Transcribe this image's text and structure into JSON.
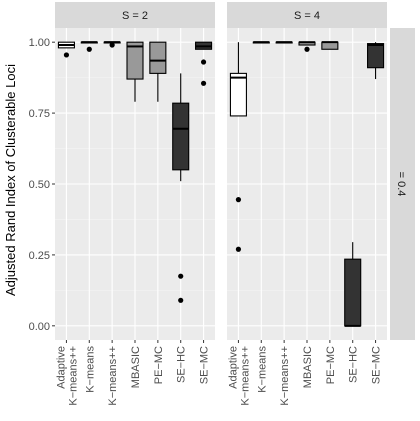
{
  "chart_data": {
    "type": "boxplot",
    "title": "",
    "ylabel": "Adjusted Rand Index of Clusterable Loci",
    "xlabel": "",
    "ylim": [
      -0.05,
      1.05
    ],
    "yticks": [
      0.0,
      0.25,
      0.5,
      0.75,
      1.0
    ],
    "ytick_labels": [
      "0.00",
      "0.25",
      "0.50",
      "0.75",
      "1.00"
    ],
    "categories": [
      "Adaptive K−means++",
      "K−means",
      "K−means++",
      "MBASIC",
      "PE−MC",
      "SE−HC",
      "SE−MC"
    ],
    "row_strip": "= 0.4",
    "panels": [
      {
        "strip": "S = 2",
        "boxes": [
          {
            "category": "Adaptive K−means++",
            "fill": "#ffffff",
            "whisker_low": 0.98,
            "q1": 0.98,
            "median": 0.99,
            "q3": 1.0,
            "whisker_high": 1.0,
            "outliers": [
              0.955
            ]
          },
          {
            "category": "K−means",
            "fill": "#ffffff",
            "whisker_low": 1.0,
            "q1": 1.0,
            "median": 1.0,
            "q3": 1.0,
            "whisker_high": 1.0,
            "outliers": [
              0.975
            ]
          },
          {
            "category": "K−means++",
            "fill": "#ffffff",
            "whisker_low": 1.0,
            "q1": 1.0,
            "median": 1.0,
            "q3": 1.0,
            "whisker_high": 1.0,
            "outliers": [
              0.99
            ]
          },
          {
            "category": "MBASIC",
            "fill": "#999999",
            "whisker_low": 0.79,
            "q1": 0.87,
            "median": 0.985,
            "q3": 1.0,
            "whisker_high": 1.0,
            "outliers": []
          },
          {
            "category": "PE−MC",
            "fill": "#999999",
            "whisker_low": 0.79,
            "q1": 0.89,
            "median": 0.935,
            "q3": 1.0,
            "whisker_high": 1.0,
            "outliers": []
          },
          {
            "category": "SE−HC",
            "fill": "#333333",
            "whisker_low": 0.51,
            "q1": 0.55,
            "median": 0.695,
            "q3": 0.785,
            "whisker_high": 0.89,
            "outliers": [
              0.175,
              0.09
            ]
          },
          {
            "category": "SE−MC",
            "fill": "#333333",
            "whisker_low": 0.975,
            "q1": 0.975,
            "median": 0.985,
            "q3": 1.0,
            "whisker_high": 1.0,
            "outliers": [
              0.93,
              0.855
            ]
          }
        ]
      },
      {
        "strip": "S = 4",
        "boxes": [
          {
            "category": "Adaptive K−means++",
            "fill": "#ffffff",
            "whisker_low": 0.74,
            "q1": 0.74,
            "median": 0.875,
            "q3": 0.89,
            "whisker_high": 1.0,
            "outliers": [
              0.445,
              0.27
            ]
          },
          {
            "category": "K−means",
            "fill": "#ffffff",
            "whisker_low": 1.0,
            "q1": 1.0,
            "median": 1.0,
            "q3": 1.0,
            "whisker_high": 1.0,
            "outliers": []
          },
          {
            "category": "K−means++",
            "fill": "#ffffff",
            "whisker_low": 1.0,
            "q1": 1.0,
            "median": 1.0,
            "q3": 1.0,
            "whisker_high": 1.0,
            "outliers": []
          },
          {
            "category": "MBASIC",
            "fill": "#999999",
            "whisker_low": 0.99,
            "q1": 0.99,
            "median": 1.0,
            "q3": 1.0,
            "whisker_high": 1.0,
            "outliers": [
              0.975
            ]
          },
          {
            "category": "PE−MC",
            "fill": "#999999",
            "whisker_low": 0.975,
            "q1": 0.975,
            "median": 1.0,
            "q3": 1.0,
            "whisker_high": 1.0,
            "outliers": []
          },
          {
            "category": "SE−HC",
            "fill": "#333333",
            "whisker_low": 0.0,
            "q1": 0.0,
            "median": 0.0,
            "q3": 0.235,
            "whisker_high": 0.295,
            "outliers": []
          },
          {
            "category": "SE−MC",
            "fill": "#333333",
            "whisker_low": 0.87,
            "q1": 0.91,
            "median": 0.99,
            "q3": 0.995,
            "whisker_high": 1.0,
            "outliers": []
          }
        ]
      }
    ],
    "colors": {
      "panel_background": "#ebebeb",
      "grid_major": "#ffffff",
      "strip_background": "#d9d9d9",
      "outline": "#000000"
    }
  }
}
